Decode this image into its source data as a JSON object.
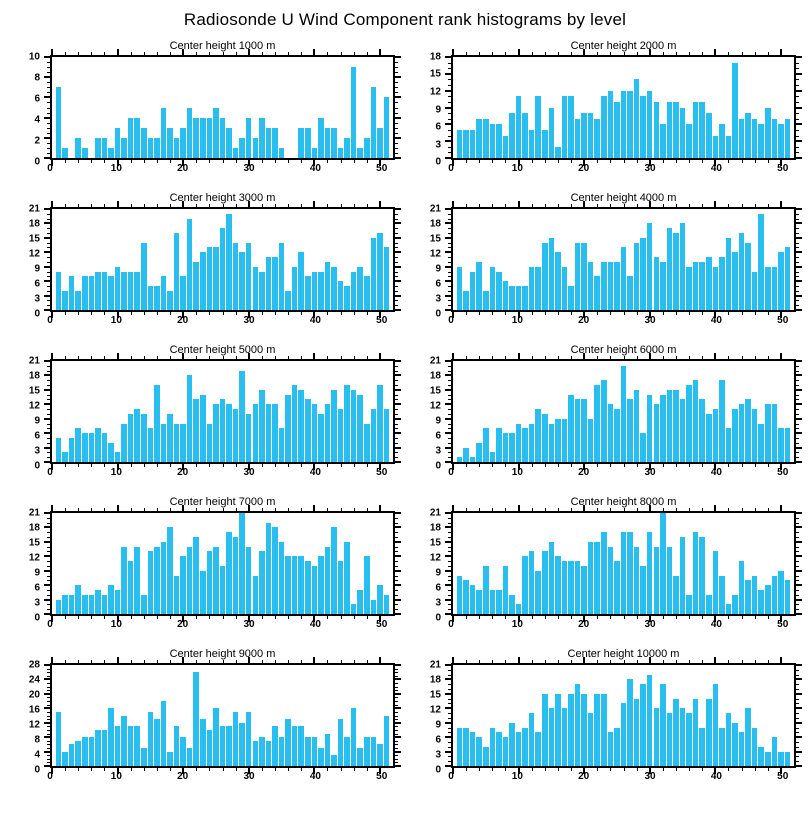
{
  "title": "Radiosonde U Wind Component rank histograms by level",
  "colors": {
    "bar": "#29BEF0",
    "axis": "#000000",
    "background": "#FFFFFF"
  },
  "x_axis": {
    "min": 0,
    "max": 52,
    "major_ticks": [
      0,
      10,
      20,
      30,
      40,
      50
    ],
    "minor_step": 2
  },
  "chart_data": [
    {
      "type": "bar",
      "title": "Center height 1000 m",
      "ylim": [
        0,
        10
      ],
      "ytick_step": 2,
      "y_minor_step": 0.5,
      "values": [
        7,
        1,
        0,
        2,
        1,
        0,
        2,
        2,
        1,
        3,
        2,
        4,
        4,
        3,
        2,
        2,
        5,
        3,
        2,
        3,
        5,
        4,
        4,
        4,
        5,
        4,
        3,
        1,
        2,
        4,
        2,
        4,
        3,
        3,
        1,
        0,
        0,
        3,
        3,
        1,
        4,
        3,
        3,
        1,
        2,
        9,
        1,
        2,
        7,
        3,
        6
      ]
    },
    {
      "type": "bar",
      "title": "Center height 2000 m",
      "ylim": [
        0,
        18
      ],
      "ytick_step": 3,
      "y_minor_step": 1,
      "values": [
        5,
        5,
        5,
        7,
        7,
        6,
        6,
        4,
        8,
        11,
        8,
        5,
        11,
        5,
        9,
        2,
        11,
        11,
        7,
        8,
        8,
        7,
        11,
        12,
        10,
        12,
        12,
        14,
        11,
        12,
        10,
        6,
        10,
        10,
        9,
        6,
        10,
        10,
        8,
        4,
        6,
        4,
        17,
        7,
        8,
        7,
        6,
        9,
        7,
        6,
        7
      ]
    },
    {
      "type": "bar",
      "title": "Center height 3000 m",
      "ylim": [
        0,
        21
      ],
      "ytick_step": 3,
      "y_minor_step": 1,
      "values": [
        8,
        4,
        7,
        4,
        7,
        7,
        8,
        8,
        7,
        9,
        8,
        8,
        8,
        14,
        5,
        5,
        7,
        4,
        16,
        7,
        19,
        10,
        12,
        13,
        13,
        17,
        20,
        14,
        12,
        14,
        9,
        8,
        11,
        11,
        14,
        4,
        9,
        12,
        7,
        8,
        8,
        10,
        9,
        6,
        5,
        8,
        9,
        7,
        15,
        16,
        13
      ]
    },
    {
      "type": "bar",
      "title": "Center height 4000 m",
      "ylim": [
        0,
        21
      ],
      "ytick_step": 3,
      "y_minor_step": 1,
      "values": [
        9,
        4,
        8,
        10,
        4,
        9,
        8,
        6,
        5,
        5,
        5,
        9,
        9,
        14,
        15,
        12,
        9,
        5,
        14,
        14,
        10,
        7,
        10,
        10,
        10,
        13,
        7,
        14,
        15,
        18,
        11,
        10,
        17,
        16,
        18,
        9,
        10,
        10,
        11,
        9,
        11,
        15,
        12,
        16,
        14,
        8,
        20,
        9,
        9,
        12,
        13
      ]
    },
    {
      "type": "bar",
      "title": "Center height 5000 m",
      "ylim": [
        0,
        21
      ],
      "ytick_step": 3,
      "y_minor_step": 1,
      "values": [
        5,
        2,
        5,
        7,
        6,
        6,
        7,
        6,
        4,
        2,
        8,
        10,
        11,
        10,
        7,
        16,
        8,
        10,
        8,
        8,
        18,
        13,
        14,
        8,
        12,
        13,
        12,
        11,
        19,
        10,
        12,
        15,
        12,
        12,
        7,
        14,
        16,
        15,
        13,
        12,
        10,
        12,
        15,
        11,
        16,
        15,
        14,
        8,
        11,
        16,
        11
      ]
    },
    {
      "type": "bar",
      "title": "Center height 6000 m",
      "ylim": [
        0,
        21
      ],
      "ytick_step": 3,
      "y_minor_step": 1,
      "values": [
        1,
        3,
        1,
        4,
        7,
        2,
        7,
        6,
        6,
        8,
        7,
        8,
        11,
        10,
        8,
        9,
        9,
        14,
        13,
        13,
        9,
        16,
        17,
        12,
        11,
        20,
        13,
        15,
        6,
        14,
        12,
        14,
        15,
        15,
        13,
        16,
        17,
        13,
        10,
        11,
        17,
        7,
        11,
        12,
        13,
        11,
        8,
        12,
        12,
        7,
        7
      ]
    },
    {
      "type": "bar",
      "title": "Center height 7000 m",
      "ylim": [
        0,
        21
      ],
      "ytick_step": 3,
      "y_minor_step": 1,
      "values": [
        3,
        4,
        4,
        6,
        4,
        4,
        5,
        4,
        6,
        5,
        14,
        11,
        14,
        4,
        13,
        14,
        15,
        18,
        8,
        12,
        14,
        16,
        9,
        13,
        14,
        10,
        17,
        16,
        21,
        14,
        8,
        13,
        19,
        18,
        15,
        12,
        12,
        12,
        11,
        10,
        12,
        14,
        18,
        11,
        15,
        2,
        5,
        12,
        3,
        6,
        4
      ]
    },
    {
      "type": "bar",
      "title": "Center height 8000 m",
      "ylim": [
        0,
        21
      ],
      "ytick_step": 3,
      "y_minor_step": 1,
      "values": [
        8,
        7,
        6,
        5,
        10,
        5,
        5,
        10,
        4,
        2,
        12,
        13,
        9,
        13,
        15,
        12,
        11,
        11,
        11,
        10,
        15,
        15,
        17,
        14,
        11,
        17,
        17,
        14,
        10,
        17,
        14,
        21,
        14,
        8,
        16,
        4,
        17,
        16,
        4,
        13,
        8,
        2,
        4,
        11,
        7,
        8,
        5,
        6,
        8,
        9,
        7
      ]
    },
    {
      "type": "bar",
      "title": "Center height 9000 m",
      "ylim": [
        0,
        28
      ],
      "ytick_step": 4,
      "y_minor_step": 1,
      "values": [
        15,
        4,
        6,
        7,
        8,
        8,
        10,
        10,
        16,
        11,
        14,
        11,
        11,
        5,
        15,
        13,
        18,
        4,
        11,
        8,
        5,
        26,
        13,
        10,
        16,
        11,
        11,
        15,
        12,
        15,
        7,
        8,
        7,
        11,
        8,
        13,
        11,
        11,
        8,
        8,
        5,
        9,
        3,
        13,
        8,
        16,
        5,
        8,
        8,
        6,
        14
      ]
    },
    {
      "type": "bar",
      "title": "Center height 10000 m",
      "ylim": [
        0,
        21
      ],
      "ytick_step": 3,
      "y_minor_step": 1,
      "values": [
        8,
        8,
        7,
        6,
        4,
        8,
        7,
        6,
        9,
        7,
        8,
        11,
        7,
        15,
        12,
        15,
        12,
        15,
        17,
        15,
        11,
        15,
        15,
        7,
        8,
        13,
        18,
        14,
        17,
        19,
        12,
        17,
        11,
        14,
        12,
        11,
        14,
        8,
        14,
        17,
        8,
        11,
        9,
        7,
        12,
        8,
        4,
        3,
        6,
        3,
        3
      ]
    }
  ]
}
